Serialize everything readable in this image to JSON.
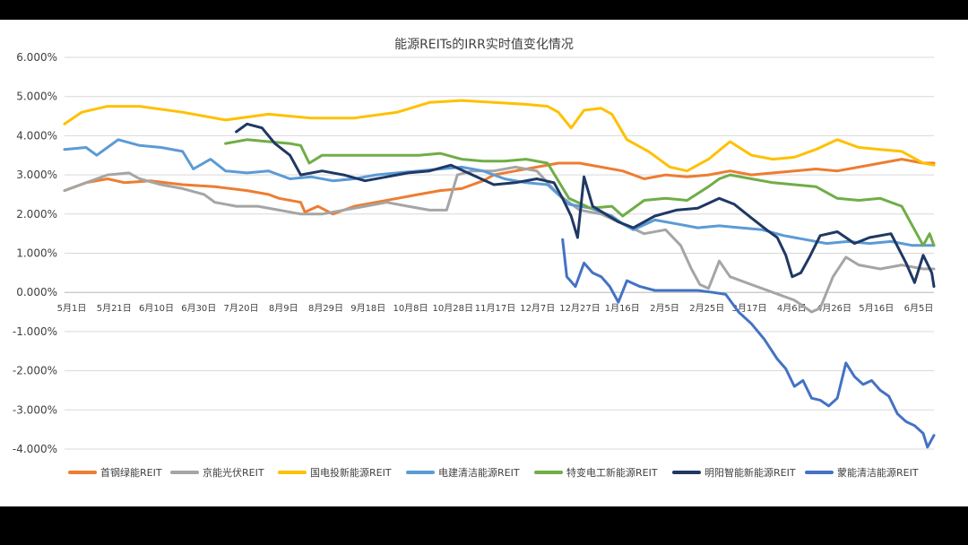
{
  "chart_data": {
    "type": "line",
    "title": "能源REITs的IRR实时值变化情况",
    "xlabel": "",
    "ylabel": "",
    "ylim": [
      -0.04,
      0.06
    ],
    "yticks": [
      0.06,
      0.05,
      0.04,
      0.03,
      0.02,
      0.01,
      0.0,
      -0.01,
      -0.02,
      -0.03,
      -0.04
    ],
    "ytick_labels": [
      "6.000%",
      "5.000%",
      "4.000%",
      "3.000%",
      "2.000%",
      "1.000%",
      "0.000%",
      "-1.000%",
      "-2.000%",
      "-3.000%",
      "-4.000%"
    ],
    "xtick_labels": [
      "5月1日",
      "5月21日",
      "6月10日",
      "6月30日",
      "7月20日",
      "8月9日",
      "8月29日",
      "9月18日",
      "10月8日",
      "10月28日",
      "11月17日",
      "12月7日",
      "12月27日",
      "1月16日",
      "2月5日",
      "2月25日",
      "3月17日",
      "4月6日",
      "4月26日",
      "5月16日",
      "6月5日"
    ],
    "grid": true,
    "legend_position": "bottom",
    "x_span_days": [
      0,
      405
    ],
    "series": [
      {
        "name": "首钢绿能REIT",
        "color": "#ED7D31",
        "points": [
          [
            0,
            0.026
          ],
          [
            10,
            0.028
          ],
          [
            20,
            0.029
          ],
          [
            28,
            0.028
          ],
          [
            40,
            0.0285
          ],
          [
            55,
            0.0275
          ],
          [
            70,
            0.027
          ],
          [
            85,
            0.026
          ],
          [
            95,
            0.025
          ],
          [
            100,
            0.024
          ],
          [
            110,
            0.023
          ],
          [
            112,
            0.0205
          ],
          [
            118,
            0.022
          ],
          [
            125,
            0.02
          ],
          [
            135,
            0.022
          ],
          [
            145,
            0.023
          ],
          [
            155,
            0.024
          ],
          [
            165,
            0.025
          ],
          [
            175,
            0.026
          ],
          [
            185,
            0.0265
          ],
          [
            195,
            0.0285
          ],
          [
            200,
            0.03
          ],
          [
            210,
            0.031
          ],
          [
            220,
            0.032
          ],
          [
            230,
            0.033
          ],
          [
            240,
            0.033
          ],
          [
            250,
            0.032
          ],
          [
            260,
            0.031
          ],
          [
            270,
            0.029
          ],
          [
            280,
            0.03
          ],
          [
            290,
            0.0295
          ],
          [
            300,
            0.03
          ],
          [
            310,
            0.031
          ],
          [
            320,
            0.03
          ],
          [
            330,
            0.0305
          ],
          [
            340,
            0.031
          ],
          [
            350,
            0.0315
          ],
          [
            360,
            0.031
          ],
          [
            370,
            0.032
          ],
          [
            380,
            0.033
          ],
          [
            390,
            0.034
          ],
          [
            400,
            0.033
          ],
          [
            405,
            0.033
          ]
        ]
      },
      {
        "name": "京能光伏REIT",
        "color": "#A5A5A5",
        "points": [
          [
            0,
            0.026
          ],
          [
            10,
            0.028
          ],
          [
            20,
            0.03
          ],
          [
            30,
            0.0305
          ],
          [
            35,
            0.029
          ],
          [
            45,
            0.0275
          ],
          [
            55,
            0.0265
          ],
          [
            65,
            0.025
          ],
          [
            70,
            0.023
          ],
          [
            80,
            0.022
          ],
          [
            90,
            0.022
          ],
          [
            100,
            0.021
          ],
          [
            110,
            0.02
          ],
          [
            120,
            0.02
          ],
          [
            130,
            0.021
          ],
          [
            140,
            0.022
          ],
          [
            150,
            0.023
          ],
          [
            160,
            0.022
          ],
          [
            170,
            0.021
          ],
          [
            178,
            0.021
          ],
          [
            183,
            0.03
          ],
          [
            190,
            0.031
          ],
          [
            200,
            0.031
          ],
          [
            210,
            0.032
          ],
          [
            220,
            0.031
          ],
          [
            230,
            0.025
          ],
          [
            240,
            0.021
          ],
          [
            250,
            0.02
          ],
          [
            260,
            0.0175
          ],
          [
            270,
            0.015
          ],
          [
            280,
            0.016
          ],
          [
            287,
            0.012
          ],
          [
            292,
            0.006
          ],
          [
            296,
            0.002
          ],
          [
            300,
            0.001
          ],
          [
            305,
            0.008
          ],
          [
            310,
            0.004
          ],
          [
            320,
            0.002
          ],
          [
            330,
            0.0
          ],
          [
            340,
            -0.002
          ],
          [
            348,
            -0.005
          ],
          [
            352,
            -0.004
          ],
          [
            358,
            0.004
          ],
          [
            364,
            0.009
          ],
          [
            370,
            0.007
          ],
          [
            380,
            0.006
          ],
          [
            390,
            0.007
          ],
          [
            400,
            0.006
          ],
          [
            405,
            0.006
          ]
        ]
      },
      {
        "name": "国电投新能源REIT",
        "color": "#FFC000",
        "points": [
          [
            0,
            0.043
          ],
          [
            8,
            0.046
          ],
          [
            20,
            0.0475
          ],
          [
            35,
            0.0475
          ],
          [
            55,
            0.046
          ],
          [
            75,
            0.044
          ],
          [
            95,
            0.0455
          ],
          [
            115,
            0.0445
          ],
          [
            135,
            0.0445
          ],
          [
            155,
            0.046
          ],
          [
            170,
            0.0485
          ],
          [
            185,
            0.049
          ],
          [
            200,
            0.0485
          ],
          [
            215,
            0.048
          ],
          [
            225,
            0.0475
          ],
          [
            230,
            0.046
          ],
          [
            236,
            0.042
          ],
          [
            242,
            0.0465
          ],
          [
            250,
            0.047
          ],
          [
            255,
            0.0455
          ],
          [
            262,
            0.039
          ],
          [
            272,
            0.036
          ],
          [
            282,
            0.032
          ],
          [
            290,
            0.031
          ],
          [
            300,
            0.034
          ],
          [
            310,
            0.0385
          ],
          [
            320,
            0.035
          ],
          [
            330,
            0.034
          ],
          [
            340,
            0.0345
          ],
          [
            350,
            0.0365
          ],
          [
            360,
            0.039
          ],
          [
            370,
            0.037
          ],
          [
            380,
            0.0365
          ],
          [
            390,
            0.036
          ],
          [
            400,
            0.033
          ],
          [
            405,
            0.0325
          ]
        ]
      },
      {
        "name": "电建清洁能源REIT",
        "color": "#5B9BD5",
        "points": [
          [
            0,
            0.0365
          ],
          [
            10,
            0.037
          ],
          [
            15,
            0.035
          ],
          [
            25,
            0.039
          ],
          [
            35,
            0.0375
          ],
          [
            45,
            0.037
          ],
          [
            55,
            0.036
          ],
          [
            60,
            0.0315
          ],
          [
            68,
            0.034
          ],
          [
            75,
            0.031
          ],
          [
            85,
            0.0305
          ],
          [
            95,
            0.031
          ],
          [
            105,
            0.029
          ],
          [
            115,
            0.0295
          ],
          [
            125,
            0.0285
          ],
          [
            135,
            0.029
          ],
          [
            145,
            0.03
          ],
          [
            155,
            0.0305
          ],
          [
            165,
            0.031
          ],
          [
            175,
            0.0315
          ],
          [
            185,
            0.032
          ],
          [
            195,
            0.031
          ],
          [
            205,
            0.029
          ],
          [
            215,
            0.028
          ],
          [
            225,
            0.0275
          ],
          [
            235,
            0.0225
          ],
          [
            245,
            0.0215
          ],
          [
            255,
            0.0195
          ],
          [
            260,
            0.0175
          ],
          [
            265,
            0.016
          ],
          [
            275,
            0.0185
          ],
          [
            285,
            0.0175
          ],
          [
            295,
            0.0165
          ],
          [
            305,
            0.017
          ],
          [
            315,
            0.0165
          ],
          [
            325,
            0.016
          ],
          [
            335,
            0.0145
          ],
          [
            345,
            0.0135
          ],
          [
            355,
            0.0125
          ],
          [
            365,
            0.013
          ],
          [
            375,
            0.0125
          ],
          [
            385,
            0.013
          ],
          [
            395,
            0.012
          ],
          [
            405,
            0.012
          ]
        ]
      },
      {
        "name": "特变电工新能源REIT",
        "color": "#70AD47",
        "points": [
          [
            75,
            0.038
          ],
          [
            85,
            0.039
          ],
          [
            95,
            0.0385
          ],
          [
            105,
            0.038
          ],
          [
            110,
            0.0375
          ],
          [
            114,
            0.033
          ],
          [
            120,
            0.035
          ],
          [
            135,
            0.035
          ],
          [
            150,
            0.035
          ],
          [
            165,
            0.035
          ],
          [
            175,
            0.0355
          ],
          [
            185,
            0.034
          ],
          [
            195,
            0.0335
          ],
          [
            205,
            0.0335
          ],
          [
            215,
            0.034
          ],
          [
            225,
            0.033
          ],
          [
            235,
            0.024
          ],
          [
            245,
            0.0215
          ],
          [
            255,
            0.022
          ],
          [
            260,
            0.0195
          ],
          [
            270,
            0.0235
          ],
          [
            280,
            0.024
          ],
          [
            290,
            0.0235
          ],
          [
            300,
            0.027
          ],
          [
            305,
            0.029
          ],
          [
            310,
            0.03
          ],
          [
            320,
            0.029
          ],
          [
            330,
            0.028
          ],
          [
            340,
            0.0275
          ],
          [
            350,
            0.027
          ],
          [
            360,
            0.024
          ],
          [
            370,
            0.0235
          ],
          [
            380,
            0.024
          ],
          [
            390,
            0.022
          ],
          [
            396,
            0.016
          ],
          [
            400,
            0.012
          ],
          [
            403,
            0.015
          ],
          [
            405,
            0.012
          ]
        ]
      },
      {
        "name": "明阳智能新能源REIT",
        "color": "#1F3864",
        "points": [
          [
            80,
            0.041
          ],
          [
            85,
            0.043
          ],
          [
            92,
            0.042
          ],
          [
            98,
            0.038
          ],
          [
            105,
            0.035
          ],
          [
            110,
            0.03
          ],
          [
            120,
            0.031
          ],
          [
            130,
            0.03
          ],
          [
            140,
            0.0285
          ],
          [
            150,
            0.0295
          ],
          [
            160,
            0.0305
          ],
          [
            170,
            0.031
          ],
          [
            180,
            0.0325
          ],
          [
            190,
            0.03
          ],
          [
            200,
            0.0275
          ],
          [
            210,
            0.028
          ],
          [
            220,
            0.029
          ],
          [
            228,
            0.028
          ],
          [
            232,
            0.024
          ],
          [
            236,
            0.0195
          ],
          [
            239,
            0.014
          ],
          [
            242,
            0.0295
          ],
          [
            246,
            0.022
          ],
          [
            252,
            0.02
          ],
          [
            258,
            0.018
          ],
          [
            265,
            0.0165
          ],
          [
            275,
            0.0195
          ],
          [
            285,
            0.021
          ],
          [
            295,
            0.0215
          ],
          [
            305,
            0.024
          ],
          [
            312,
            0.0225
          ],
          [
            320,
            0.019
          ],
          [
            327,
            0.016
          ],
          [
            332,
            0.014
          ],
          [
            336,
            0.0095
          ],
          [
            339,
            0.004
          ],
          [
            343,
            0.005
          ],
          [
            347,
            0.009
          ],
          [
            352,
            0.0145
          ],
          [
            360,
            0.0155
          ],
          [
            368,
            0.0125
          ],
          [
            375,
            0.014
          ],
          [
            385,
            0.015
          ],
          [
            392,
            0.0075
          ],
          [
            396,
            0.0025
          ],
          [
            400,
            0.0095
          ],
          [
            404,
            0.005
          ],
          [
            405,
            0.0015
          ]
        ]
      },
      {
        "name": "蒙能清洁能源REIT",
        "color": "#4472C4",
        "points": [
          [
            232,
            0.0135
          ],
          [
            234,
            0.004
          ],
          [
            238,
            0.0015
          ],
          [
            242,
            0.0075
          ],
          [
            246,
            0.005
          ],
          [
            250,
            0.004
          ],
          [
            254,
            0.0015
          ],
          [
            258,
            -0.0025
          ],
          [
            262,
            0.003
          ],
          [
            268,
            0.0015
          ],
          [
            275,
            0.0005
          ],
          [
            285,
            0.0005
          ],
          [
            295,
            0.0005
          ],
          [
            302,
            0.0
          ],
          [
            308,
            -0.0005
          ],
          [
            314,
            -0.005
          ],
          [
            320,
            -0.008
          ],
          [
            326,
            -0.012
          ],
          [
            332,
            -0.017
          ],
          [
            336,
            -0.0195
          ],
          [
            340,
            -0.024
          ],
          [
            344,
            -0.0225
          ],
          [
            348,
            -0.027
          ],
          [
            352,
            -0.0275
          ],
          [
            356,
            -0.029
          ],
          [
            360,
            -0.027
          ],
          [
            364,
            -0.018
          ],
          [
            368,
            -0.0215
          ],
          [
            372,
            -0.0235
          ],
          [
            376,
            -0.0225
          ],
          [
            380,
            -0.025
          ],
          [
            384,
            -0.0265
          ],
          [
            388,
            -0.031
          ],
          [
            392,
            -0.033
          ],
          [
            396,
            -0.034
          ],
          [
            400,
            -0.036
          ],
          [
            402,
            -0.0395
          ],
          [
            405,
            -0.0365
          ]
        ]
      }
    ]
  }
}
